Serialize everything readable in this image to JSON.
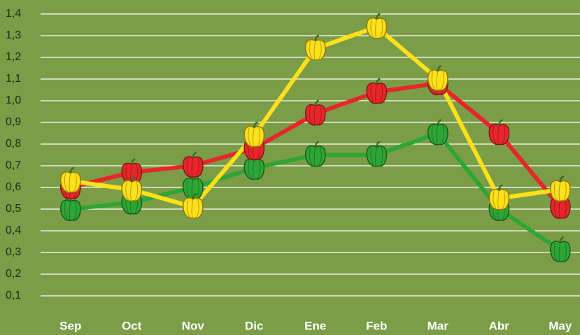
{
  "chart_data": {
    "type": "line",
    "categories": [
      "Sep",
      "Oct",
      "Nov",
      "Dic",
      "Ene",
      "Feb",
      "Mar",
      "Abr",
      "May"
    ],
    "series": [
      {
        "color": "#2ea636",
        "values": [
          0.5,
          0.53,
          0.6,
          0.69,
          0.75,
          0.75,
          0.85,
          0.5,
          0.31
        ]
      },
      {
        "color": "#e8262a",
        "values": [
          0.6,
          0.67,
          0.7,
          0.78,
          0.94,
          1.04,
          1.08,
          0.85,
          0.51
        ]
      },
      {
        "color": "#ffe01a",
        "values": [
          0.63,
          0.59,
          0.51,
          0.84,
          1.24,
          1.34,
          1.1,
          0.55,
          0.59
        ]
      }
    ],
    "ylim": [
      0,
      1.4
    ],
    "yticks": [
      {
        "value": 0.1,
        "label": "0,1"
      },
      {
        "value": 0.2,
        "label": "0,2"
      },
      {
        "value": 0.3,
        "label": "0,3"
      },
      {
        "value": 0.4,
        "label": "0,4"
      },
      {
        "value": 0.5,
        "label": "0,5"
      },
      {
        "value": 0.6,
        "label": "0,6"
      },
      {
        "value": 0.7,
        "label": "0,7"
      },
      {
        "value": 0.8,
        "label": "0,8"
      },
      {
        "value": 0.9,
        "label": "0,9"
      },
      {
        "value": 1.0,
        "label": "1,0"
      },
      {
        "value": 1.1,
        "label": "1,1"
      },
      {
        "value": 1.2,
        "label": "1,2"
      },
      {
        "value": 1.3,
        "label": "1,3"
      },
      {
        "value": 1.4,
        "label": "1,4"
      }
    ],
    "grid": true
  }
}
